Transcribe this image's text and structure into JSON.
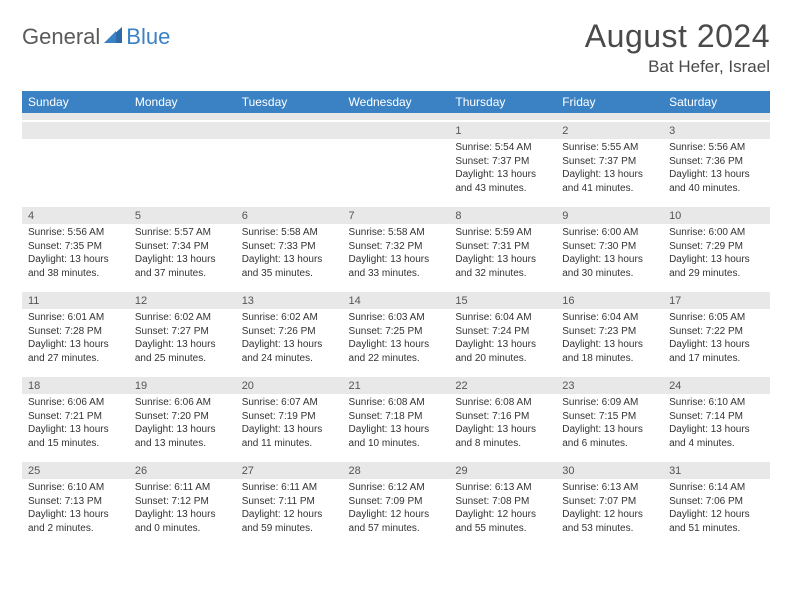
{
  "logo": {
    "text1": "General",
    "text2": "Blue"
  },
  "title": "August 2024",
  "location": "Bat Hefer, Israel",
  "colors": {
    "header_bg": "#3b82c4",
    "header_text": "#ffffff",
    "daynum_bg": "#e8e8e8",
    "row_border": "#6b7885",
    "body_text": "#333333",
    "title_text": "#4a4a4a"
  },
  "day_headers": [
    "Sunday",
    "Monday",
    "Tuesday",
    "Wednesday",
    "Thursday",
    "Friday",
    "Saturday"
  ],
  "weeks": [
    {
      "nums": [
        "",
        "",
        "",
        "",
        "1",
        "2",
        "3"
      ],
      "cells": [
        null,
        null,
        null,
        null,
        {
          "sunrise": "Sunrise: 5:54 AM",
          "sunset": "Sunset: 7:37 PM",
          "day1": "Daylight: 13 hours",
          "day2": "and 43 minutes."
        },
        {
          "sunrise": "Sunrise: 5:55 AM",
          "sunset": "Sunset: 7:37 PM",
          "day1": "Daylight: 13 hours",
          "day2": "and 41 minutes."
        },
        {
          "sunrise": "Sunrise: 5:56 AM",
          "sunset": "Sunset: 7:36 PM",
          "day1": "Daylight: 13 hours",
          "day2": "and 40 minutes."
        }
      ]
    },
    {
      "nums": [
        "4",
        "5",
        "6",
        "7",
        "8",
        "9",
        "10"
      ],
      "cells": [
        {
          "sunrise": "Sunrise: 5:56 AM",
          "sunset": "Sunset: 7:35 PM",
          "day1": "Daylight: 13 hours",
          "day2": "and 38 minutes."
        },
        {
          "sunrise": "Sunrise: 5:57 AM",
          "sunset": "Sunset: 7:34 PM",
          "day1": "Daylight: 13 hours",
          "day2": "and 37 minutes."
        },
        {
          "sunrise": "Sunrise: 5:58 AM",
          "sunset": "Sunset: 7:33 PM",
          "day1": "Daylight: 13 hours",
          "day2": "and 35 minutes."
        },
        {
          "sunrise": "Sunrise: 5:58 AM",
          "sunset": "Sunset: 7:32 PM",
          "day1": "Daylight: 13 hours",
          "day2": "and 33 minutes."
        },
        {
          "sunrise": "Sunrise: 5:59 AM",
          "sunset": "Sunset: 7:31 PM",
          "day1": "Daylight: 13 hours",
          "day2": "and 32 minutes."
        },
        {
          "sunrise": "Sunrise: 6:00 AM",
          "sunset": "Sunset: 7:30 PM",
          "day1": "Daylight: 13 hours",
          "day2": "and 30 minutes."
        },
        {
          "sunrise": "Sunrise: 6:00 AM",
          "sunset": "Sunset: 7:29 PM",
          "day1": "Daylight: 13 hours",
          "day2": "and 29 minutes."
        }
      ]
    },
    {
      "nums": [
        "11",
        "12",
        "13",
        "14",
        "15",
        "16",
        "17"
      ],
      "cells": [
        {
          "sunrise": "Sunrise: 6:01 AM",
          "sunset": "Sunset: 7:28 PM",
          "day1": "Daylight: 13 hours",
          "day2": "and 27 minutes."
        },
        {
          "sunrise": "Sunrise: 6:02 AM",
          "sunset": "Sunset: 7:27 PM",
          "day1": "Daylight: 13 hours",
          "day2": "and 25 minutes."
        },
        {
          "sunrise": "Sunrise: 6:02 AM",
          "sunset": "Sunset: 7:26 PM",
          "day1": "Daylight: 13 hours",
          "day2": "and 24 minutes."
        },
        {
          "sunrise": "Sunrise: 6:03 AM",
          "sunset": "Sunset: 7:25 PM",
          "day1": "Daylight: 13 hours",
          "day2": "and 22 minutes."
        },
        {
          "sunrise": "Sunrise: 6:04 AM",
          "sunset": "Sunset: 7:24 PM",
          "day1": "Daylight: 13 hours",
          "day2": "and 20 minutes."
        },
        {
          "sunrise": "Sunrise: 6:04 AM",
          "sunset": "Sunset: 7:23 PM",
          "day1": "Daylight: 13 hours",
          "day2": "and 18 minutes."
        },
        {
          "sunrise": "Sunrise: 6:05 AM",
          "sunset": "Sunset: 7:22 PM",
          "day1": "Daylight: 13 hours",
          "day2": "and 17 minutes."
        }
      ]
    },
    {
      "nums": [
        "18",
        "19",
        "20",
        "21",
        "22",
        "23",
        "24"
      ],
      "cells": [
        {
          "sunrise": "Sunrise: 6:06 AM",
          "sunset": "Sunset: 7:21 PM",
          "day1": "Daylight: 13 hours",
          "day2": "and 15 minutes."
        },
        {
          "sunrise": "Sunrise: 6:06 AM",
          "sunset": "Sunset: 7:20 PM",
          "day1": "Daylight: 13 hours",
          "day2": "and 13 minutes."
        },
        {
          "sunrise": "Sunrise: 6:07 AM",
          "sunset": "Sunset: 7:19 PM",
          "day1": "Daylight: 13 hours",
          "day2": "and 11 minutes."
        },
        {
          "sunrise": "Sunrise: 6:08 AM",
          "sunset": "Sunset: 7:18 PM",
          "day1": "Daylight: 13 hours",
          "day2": "and 10 minutes."
        },
        {
          "sunrise": "Sunrise: 6:08 AM",
          "sunset": "Sunset: 7:16 PM",
          "day1": "Daylight: 13 hours",
          "day2": "and 8 minutes."
        },
        {
          "sunrise": "Sunrise: 6:09 AM",
          "sunset": "Sunset: 7:15 PM",
          "day1": "Daylight: 13 hours",
          "day2": "and 6 minutes."
        },
        {
          "sunrise": "Sunrise: 6:10 AM",
          "sunset": "Sunset: 7:14 PM",
          "day1": "Daylight: 13 hours",
          "day2": "and 4 minutes."
        }
      ]
    },
    {
      "nums": [
        "25",
        "26",
        "27",
        "28",
        "29",
        "30",
        "31"
      ],
      "cells": [
        {
          "sunrise": "Sunrise: 6:10 AM",
          "sunset": "Sunset: 7:13 PM",
          "day1": "Daylight: 13 hours",
          "day2": "and 2 minutes."
        },
        {
          "sunrise": "Sunrise: 6:11 AM",
          "sunset": "Sunset: 7:12 PM",
          "day1": "Daylight: 13 hours",
          "day2": "and 0 minutes."
        },
        {
          "sunrise": "Sunrise: 6:11 AM",
          "sunset": "Sunset: 7:11 PM",
          "day1": "Daylight: 12 hours",
          "day2": "and 59 minutes."
        },
        {
          "sunrise": "Sunrise: 6:12 AM",
          "sunset": "Sunset: 7:09 PM",
          "day1": "Daylight: 12 hours",
          "day2": "and 57 minutes."
        },
        {
          "sunrise": "Sunrise: 6:13 AM",
          "sunset": "Sunset: 7:08 PM",
          "day1": "Daylight: 12 hours",
          "day2": "and 55 minutes."
        },
        {
          "sunrise": "Sunrise: 6:13 AM",
          "sunset": "Sunset: 7:07 PM",
          "day1": "Daylight: 12 hours",
          "day2": "and 53 minutes."
        },
        {
          "sunrise": "Sunrise: 6:14 AM",
          "sunset": "Sunset: 7:06 PM",
          "day1": "Daylight: 12 hours",
          "day2": "and 51 minutes."
        }
      ]
    }
  ]
}
